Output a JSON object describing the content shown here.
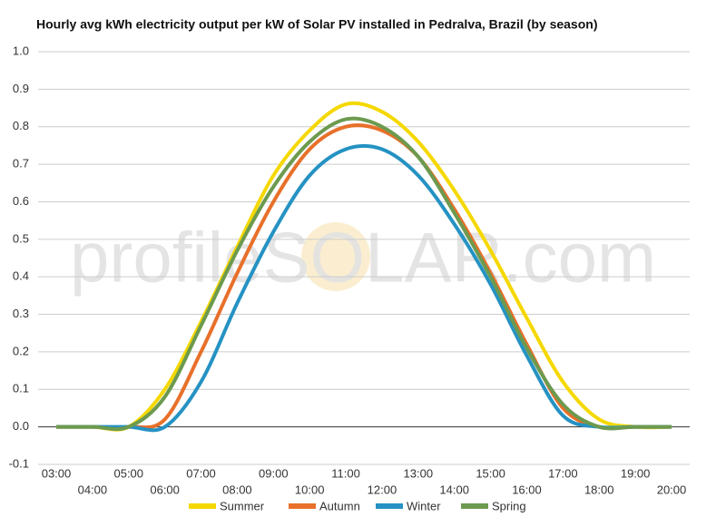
{
  "chart_data": {
    "type": "line",
    "title": "Hourly avg kWh electricity output per kW of Solar PV installed in Pedralva, Brazil (by season)",
    "watermark": "profileSOLAR.com",
    "categories": [
      "03:00",
      "04:00",
      "05:00",
      "06:00",
      "07:00",
      "08:00",
      "09:00",
      "10:00",
      "11:00",
      "12:00",
      "13:00",
      "14:00",
      "15:00",
      "16:00",
      "17:00",
      "18:00",
      "19:00",
      "20:00"
    ],
    "series": [
      {
        "name": "Summer",
        "color": "#f5d800",
        "values": [
          0,
          0,
          0,
          0.1,
          0.28,
          0.48,
          0.67,
          0.79,
          0.86,
          0.84,
          0.76,
          0.63,
          0.47,
          0.29,
          0.12,
          0.02,
          0,
          0
        ]
      },
      {
        "name": "Autumn",
        "color": "#e8702a",
        "values": [
          0,
          0,
          0,
          0.02,
          0.2,
          0.41,
          0.6,
          0.74,
          0.8,
          0.79,
          0.72,
          0.58,
          0.41,
          0.22,
          0.05,
          0,
          0,
          0
        ]
      },
      {
        "name": "Winter",
        "color": "#2592c3",
        "values": [
          0,
          0,
          0,
          0,
          0.12,
          0.33,
          0.52,
          0.67,
          0.74,
          0.74,
          0.67,
          0.54,
          0.38,
          0.19,
          0.03,
          0,
          0,
          0
        ]
      },
      {
        "name": "Spring",
        "color": "#6c9a4f",
        "values": [
          0,
          0,
          0,
          0.08,
          0.27,
          0.47,
          0.64,
          0.76,
          0.82,
          0.8,
          0.72,
          0.57,
          0.4,
          0.21,
          0.06,
          0,
          0,
          0
        ]
      }
    ],
    "ylim": [
      -0.1,
      1.0
    ],
    "yticks": [
      -0.1,
      {
        "value": 0,
        "label": "0.0"
      },
      0.1,
      0.2,
      0.3,
      0.4,
      0.5,
      0.6,
      0.7,
      0.8,
      0.9,
      {
        "value": 1,
        "label": "1.0"
      }
    ],
    "grid": true
  }
}
